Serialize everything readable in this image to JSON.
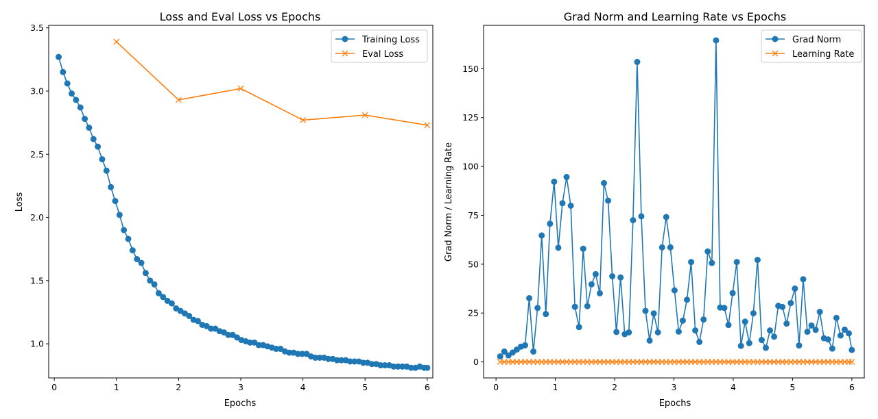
{
  "colors": {
    "blue": "#1f77b4",
    "orange": "#ff7f0e"
  },
  "chart_data": [
    {
      "type": "line",
      "title": "Loss and Eval Loss vs Epochs",
      "xlabel": "Epochs",
      "ylabel": "Loss",
      "xlim": [
        -0.09,
        6.09
      ],
      "ylim": [
        0.73,
        3.52
      ],
      "xticks": [
        0,
        1,
        2,
        3,
        4,
        5,
        6
      ],
      "yticks": [
        1.0,
        1.5,
        2.0,
        2.5,
        3.0,
        3.5
      ],
      "ytick_labels": [
        "1.0",
        "1.5",
        "2.0",
        "2.5",
        "3.0",
        "3.5"
      ],
      "legend_position": "top-right",
      "grid": false,
      "series": [
        {
          "name": "Training Loss",
          "marker": "circle",
          "color": "#1f77b4",
          "x": [
            0.07,
            0.14,
            0.21,
            0.28,
            0.35,
            0.42,
            0.49,
            0.56,
            0.63,
            0.7,
            0.77,
            0.84,
            0.91,
            0.98,
            1.05,
            1.12,
            1.19,
            1.26,
            1.33,
            1.4,
            1.47,
            1.54,
            1.61,
            1.68,
            1.75,
            1.82,
            1.89,
            1.96,
            2.03,
            2.1,
            2.17,
            2.24,
            2.31,
            2.38,
            2.45,
            2.52,
            2.59,
            2.66,
            2.73,
            2.8,
            2.87,
            2.94,
            3.01,
            3.08,
            3.15,
            3.22,
            3.29,
            3.36,
            3.43,
            3.5,
            3.57,
            3.64,
            3.71,
            3.78,
            3.85,
            3.92,
            3.99,
            4.06,
            4.13,
            4.2,
            4.27,
            4.34,
            4.41,
            4.48,
            4.55,
            4.62,
            4.69,
            4.76,
            4.83,
            4.9,
            4.97,
            5.04,
            5.11,
            5.18,
            5.25,
            5.32,
            5.39,
            5.46,
            5.53,
            5.6,
            5.67,
            5.74,
            5.81,
            5.88,
            5.95,
            6.0
          ],
          "y": [
            3.27,
            3.15,
            3.06,
            2.98,
            2.93,
            2.87,
            2.78,
            2.71,
            2.62,
            2.56,
            2.46,
            2.37,
            2.24,
            2.13,
            2.02,
            1.9,
            1.83,
            1.74,
            1.67,
            1.64,
            1.56,
            1.5,
            1.47,
            1.4,
            1.37,
            1.34,
            1.32,
            1.28,
            1.26,
            1.24,
            1.22,
            1.19,
            1.18,
            1.15,
            1.14,
            1.12,
            1.12,
            1.1,
            1.09,
            1.07,
            1.07,
            1.05,
            1.03,
            1.02,
            1.01,
            1.01,
            0.99,
            0.99,
            0.98,
            0.97,
            0.96,
            0.96,
            0.94,
            0.93,
            0.93,
            0.92,
            0.92,
            0.92,
            0.9,
            0.89,
            0.89,
            0.89,
            0.88,
            0.88,
            0.87,
            0.87,
            0.87,
            0.86,
            0.86,
            0.86,
            0.85,
            0.85,
            0.84,
            0.84,
            0.83,
            0.83,
            0.83,
            0.82,
            0.82,
            0.82,
            0.82,
            0.81,
            0.81,
            0.82,
            0.81,
            0.81
          ]
        },
        {
          "name": "Eval Loss",
          "marker": "x",
          "color": "#ff7f0e",
          "x": [
            1,
            2,
            3,
            4,
            5,
            6
          ],
          "y": [
            3.39,
            2.93,
            3.02,
            2.77,
            2.81,
            2.73
          ]
        }
      ]
    },
    {
      "type": "line",
      "title": "Grad Norm and Learning Rate vs Epochs",
      "xlabel": "Epochs",
      "ylabel": "Grad Norm / Learning Rate",
      "xlim": [
        -0.21,
        6.21
      ],
      "ylim": [
        -8.2,
        172.2
      ],
      "xticks": [
        0,
        1,
        2,
        3,
        4,
        5,
        6
      ],
      "yticks": [
        0,
        25,
        50,
        75,
        100,
        125,
        150
      ],
      "ytick_labels": [
        "0",
        "25",
        "50",
        "75",
        "100",
        "125",
        "150"
      ],
      "legend_position": "top-right",
      "grid": false,
      "series": [
        {
          "name": "Grad Norm",
          "marker": "circle",
          "color": "#1f77b4",
          "x": [
            0.07,
            0.14,
            0.21,
            0.28,
            0.35,
            0.42,
            0.49,
            0.56,
            0.63,
            0.7,
            0.77,
            0.84,
            0.91,
            0.98,
            1.05,
            1.12,
            1.19,
            1.26,
            1.33,
            1.4,
            1.47,
            1.54,
            1.61,
            1.68,
            1.75,
            1.82,
            1.89,
            1.96,
            2.03,
            2.1,
            2.17,
            2.24,
            2.31,
            2.38,
            2.45,
            2.52,
            2.59,
            2.66,
            2.73,
            2.8,
            2.87,
            2.94,
            3.01,
            3.08,
            3.15,
            3.22,
            3.29,
            3.36,
            3.43,
            3.5,
            3.57,
            3.64,
            3.71,
            3.78,
            3.85,
            3.92,
            3.99,
            4.06,
            4.13,
            4.2,
            4.27,
            4.34,
            4.41,
            4.48,
            4.55,
            4.62,
            4.69,
            4.76,
            4.83,
            4.9,
            4.97,
            5.04,
            5.11,
            5.18,
            5.25,
            5.32,
            5.39,
            5.46,
            5.53,
            5.6,
            5.67,
            5.74,
            5.81,
            5.88,
            5.95,
            6.0
          ],
          "y": [
            2.8,
            5.3,
            3.3,
            4.8,
            6.3,
            7.8,
            8.5,
            32.6,
            5.3,
            27.6,
            64.7,
            24.5,
            70.7,
            92.2,
            58.4,
            81.2,
            94.6,
            79.9,
            28.2,
            17.8,
            57.9,
            28.5,
            39.7,
            44.9,
            35.1,
            91.5,
            82.5,
            43.8,
            15.3,
            43.2,
            14.2,
            15.1,
            72.5,
            153.5,
            74.5,
            26.1,
            10.9,
            24.8,
            15.1,
            58.6,
            74.1,
            58.6,
            36.6,
            15.5,
            21.1,
            31.8,
            51.1,
            16.1,
            10.2,
            21.7,
            56.5,
            50.6,
            164.5,
            27.8,
            27.6,
            18.9,
            35.2,
            51.1,
            8.2,
            20.6,
            9.6,
            24.9,
            52.2,
            11.2,
            7.2,
            16.1,
            12.9,
            28.7,
            28.1,
            19.6,
            30.1,
            37.5,
            8.4,
            42.3,
            15.4,
            18.6,
            16.4,
            25.6,
            12.1,
            11.5,
            6.8,
            22.5,
            13.5,
            16.5,
            14.6,
            6.1
          ]
        },
        {
          "name": "Learning Rate",
          "marker": "x",
          "color": "#ff7f0e",
          "x": [
            0.07,
            0.14,
            0.21,
            0.28,
            0.35,
            0.42,
            0.49,
            0.56,
            0.63,
            0.7,
            0.77,
            0.84,
            0.91,
            0.98,
            1.05,
            1.12,
            1.19,
            1.26,
            1.33,
            1.4,
            1.47,
            1.54,
            1.61,
            1.68,
            1.75,
            1.82,
            1.89,
            1.96,
            2.03,
            2.1,
            2.17,
            2.24,
            2.31,
            2.38,
            2.45,
            2.52,
            2.59,
            2.66,
            2.73,
            2.8,
            2.87,
            2.94,
            3.01,
            3.08,
            3.15,
            3.22,
            3.29,
            3.36,
            3.43,
            3.5,
            3.57,
            3.64,
            3.71,
            3.78,
            3.85,
            3.92,
            3.99,
            4.06,
            4.13,
            4.2,
            4.27,
            4.34,
            4.41,
            4.48,
            4.55,
            4.62,
            4.69,
            4.76,
            4.83,
            4.9,
            4.97,
            5.04,
            5.11,
            5.18,
            5.25,
            5.32,
            5.39,
            5.46,
            5.53,
            5.6,
            5.67,
            5.74,
            5.81,
            5.88,
            5.95,
            6.0
          ],
          "y": [
            0,
            0,
            0,
            0,
            0,
            0,
            0,
            0,
            0,
            0,
            0,
            0,
            0,
            0,
            0,
            0,
            0,
            0,
            0,
            0,
            0,
            0,
            0,
            0,
            0,
            0,
            0,
            0,
            0,
            0,
            0,
            0,
            0,
            0,
            0,
            0,
            0,
            0,
            0,
            0,
            0,
            0,
            0,
            0,
            0,
            0,
            0,
            0,
            0,
            0,
            0,
            0,
            0,
            0,
            0,
            0,
            0,
            0,
            0,
            0,
            0,
            0,
            0,
            0,
            0,
            0,
            0,
            0,
            0,
            0,
            0,
            0,
            0,
            0,
            0,
            0,
            0,
            0,
            0,
            0,
            0,
            0,
            0,
            0,
            0,
            0
          ]
        }
      ]
    }
  ]
}
